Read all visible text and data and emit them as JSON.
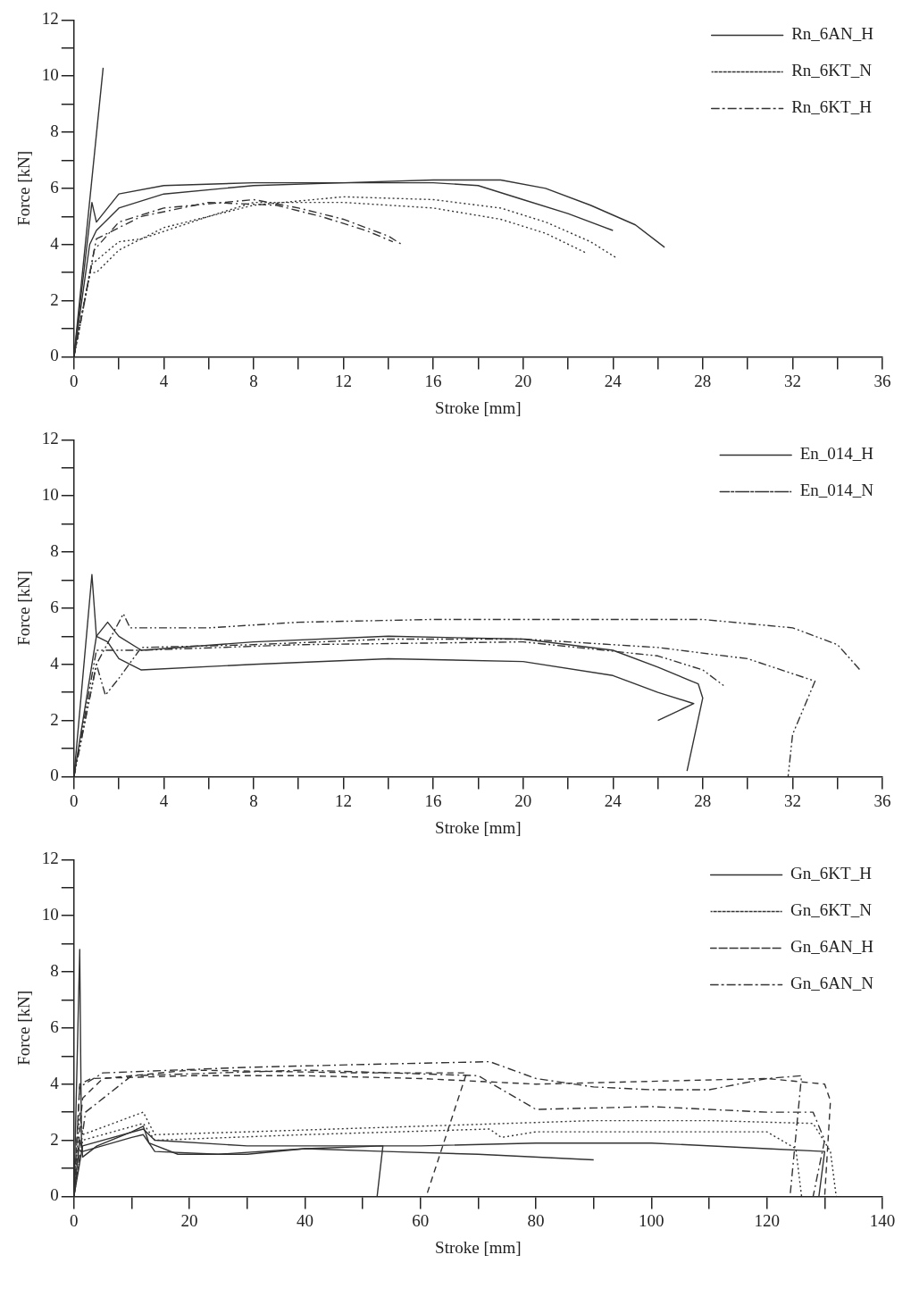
{
  "chart_data": [
    {
      "type": "line",
      "xlabel": "Stroke [mm]",
      "ylabel": "Force [kN]",
      "xlim": [
        0,
        36
      ],
      "ylim": [
        0,
        12
      ],
      "xticks": [
        0,
        {
          "value": 2,
          "label": null
        },
        4,
        {
          "value": 6,
          "label": null
        },
        8,
        {
          "value": 10,
          "label": null
        },
        12,
        {
          "value": 14,
          "label": null
        },
        16,
        {
          "value": 18,
          "label": null
        },
        20,
        {
          "value": 22,
          "label": null
        },
        24,
        {
          "value": 26,
          "label": null
        },
        28,
        {
          "value": 30,
          "label": null
        },
        32,
        {
          "value": 34,
          "label": null
        },
        36
      ],
      "yticks": [
        0,
        {
          "value": 1,
          "label": null
        },
        2,
        {
          "value": 3,
          "label": null
        },
        4,
        {
          "value": 5,
          "label": null
        },
        6,
        {
          "value": 7,
          "label": null
        },
        8,
        {
          "value": 9,
          "label": null
        },
        10,
        {
          "value": 11,
          "label": null
        },
        12
      ],
      "grid": false,
      "legend": "top right",
      "series": [
        {
          "name": "Rn_6AN_H",
          "color": "#333333",
          "line_style": "solid",
          "x": [
            0,
            0.8,
            1,
            2,
            4,
            8,
            12,
            16,
            19,
            21,
            23,
            25,
            26.3
          ],
          "values": [
            0,
            5.5,
            4.8,
            5.8,
            6.1,
            6.2,
            6.2,
            6.3,
            6.3,
            6.0,
            5.4,
            4.7,
            3.9
          ]
        },
        {
          "name": "Rn_6KT_N",
          "color": "#333333",
          "line_style": "dotted",
          "x": [
            0,
            0.7,
            1,
            2,
            4,
            8,
            12,
            16,
            19,
            21,
            23,
            24.2
          ],
          "values": [
            0,
            3,
            3,
            3.8,
            4.6,
            5.4,
            5.7,
            5.6,
            5.3,
            4.8,
            4.1,
            3.5
          ]
        },
        {
          "name": "Rn_6KT_H",
          "color": "#333333",
          "line_style": "dashdot",
          "x": [
            0,
            0.9,
            2,
            4,
            8,
            10,
            12,
            14,
            14.6
          ],
          "values": [
            0,
            3.8,
            4.8,
            5.3,
            5.6,
            5.3,
            4.9,
            4.3,
            4.0
          ]
        },
        {
          "color": "#333333",
          "line_style": "solid",
          "x": [
            0,
            0.7,
            1,
            2,
            4,
            8,
            12,
            16,
            18,
            20,
            22,
            24
          ],
          "values": [
            0,
            4,
            4.5,
            5.3,
            5.8,
            6.1,
            6.2,
            6.2,
            6.1,
            5.6,
            5.1,
            4.5
          ]
        },
        {
          "color": "#333333",
          "line_style": "solid",
          "x": [
            0,
            1.3
          ],
          "values": [
            0,
            10.3
          ]
        },
        {
          "color": "#333333",
          "line_style": "dotted",
          "x": [
            0,
            0.8,
            2,
            3,
            6,
            8,
            12,
            16,
            19,
            21,
            22.8
          ],
          "values": [
            0,
            3.3,
            4.1,
            4.2,
            5,
            5.5,
            5.5,
            5.3,
            4.9,
            4.4,
            3.7
          ]
        },
        {
          "color": "#333333",
          "line_style": "dashdot",
          "x": [
            0,
            1,
            3,
            6,
            9,
            11,
            13,
            14.2
          ],
          "values": [
            0,
            4.2,
            5.0,
            5.5,
            5.4,
            5.0,
            4.5,
            4.1
          ]
        }
      ]
    },
    {
      "type": "line",
      "xlabel": "Stroke [mm]",
      "ylabel": "Force [kN]",
      "xlim": [
        0,
        36
      ],
      "ylim": [
        0,
        12
      ],
      "xticks": [
        0,
        {
          "value": 2,
          "label": null
        },
        4,
        {
          "value": 6,
          "label": null
        },
        8,
        {
          "value": 10,
          "label": null
        },
        12,
        {
          "value": 14,
          "label": null
        },
        16,
        {
          "value": 18,
          "label": null
        },
        20,
        {
          "value": 22,
          "label": null
        },
        24,
        {
          "value": 26,
          "label": null
        },
        28,
        {
          "value": 30,
          "label": null
        },
        32,
        {
          "value": 34,
          "label": null
        },
        36
      ],
      "yticks": [
        0,
        {
          "value": 1,
          "label": null
        },
        2,
        {
          "value": 3,
          "label": null
        },
        4,
        {
          "value": 5,
          "label": null
        },
        6,
        {
          "value": 7,
          "label": null
        },
        8,
        {
          "value": 9,
          "label": null
        },
        10,
        {
          "value": 11,
          "label": null
        },
        12
      ],
      "grid": false,
      "legend": "top right",
      "series": [
        {
          "name": "En_014_H",
          "color": "#333333",
          "line_style": "solid",
          "x": [
            0,
            0.8,
            1,
            1.5,
            2,
            3,
            8,
            14,
            20,
            24,
            26,
            27.6,
            26
          ],
          "values": [
            0,
            7.2,
            5,
            4.8,
            4.2,
            3.8,
            4.0,
            4.2,
            4.1,
            3.6,
            3.0,
            2.6,
            2.0
          ]
        },
        {
          "name": "En_014_N",
          "color": "#333333",
          "line_style": "dashdotdot",
          "x": [
            0,
            1,
            2.2,
            2.5,
            6,
            10,
            16,
            22,
            28,
            32,
            34,
            35
          ],
          "values": [
            0,
            4,
            5.8,
            5.3,
            5.3,
            5.5,
            5.6,
            5.6,
            5.6,
            5.3,
            4.7,
            3.8
          ]
        },
        {
          "color": "#333333",
          "line_style": "solid",
          "x": [
            0,
            1,
            1.5,
            2,
            3,
            8,
            14,
            20,
            24,
            26,
            27.8,
            28,
            27.3
          ],
          "values": [
            0,
            5,
            5.5,
            5,
            4.5,
            4.8,
            5.0,
            4.9,
            4.5,
            3.9,
            3.3,
            2.8,
            0.2
          ]
        },
        {
          "color": "#333333",
          "line_style": "dashdotdot",
          "x": [
            0,
            1,
            1.4,
            2,
            3,
            8,
            14,
            20,
            26,
            30,
            33,
            32,
            31.8
          ],
          "values": [
            0,
            4,
            2.9,
            3.5,
            4.6,
            4.7,
            4.9,
            4.9,
            4.6,
            4.2,
            3.4,
            1.5,
            0
          ]
        },
        {
          "color": "#333333",
          "line_style": "dashdotdot",
          "x": [
            0,
            1,
            3,
            10,
            20,
            26,
            28,
            29
          ],
          "values": [
            0,
            4.5,
            4.5,
            4.7,
            4.8,
            4.3,
            3.8,
            3.2
          ]
        }
      ]
    },
    {
      "type": "line",
      "xlabel": "Stroke [mm]",
      "ylabel": "Force [kN]",
      "xlim": [
        0,
        140
      ],
      "ylim": [
        0,
        12
      ],
      "xticks": [
        0,
        {
          "value": 10,
          "label": null
        },
        20,
        {
          "value": 30,
          "label": null
        },
        40,
        {
          "value": 50,
          "label": null
        },
        60,
        {
          "value": 70,
          "label": null
        },
        80,
        {
          "value": 90,
          "label": null
        },
        100,
        {
          "value": 110,
          "label": null
        },
        120,
        {
          "value": 130,
          "label": null
        },
        140
      ],
      "yticks": [
        0,
        {
          "value": 1,
          "label": null
        },
        2,
        {
          "value": 3,
          "label": null
        },
        4,
        {
          "value": 5,
          "label": null
        },
        6,
        {
          "value": 7,
          "label": null
        },
        8,
        {
          "value": 9,
          "label": null
        },
        10,
        {
          "value": 11,
          "label": null
        },
        12
      ],
      "grid": false,
      "legend": "top right",
      "series": [
        {
          "name": "Gn_6KT_H",
          "color": "#333333",
          "line_style": "solid",
          "x": [
            0,
            1,
            1.3,
            1.5,
            4,
            10,
            12,
            13,
            18,
            30,
            40,
            53.5,
            52.5
          ],
          "values": [
            0,
            8.8,
            2,
            1.4,
            1.8,
            2.3,
            2.5,
            1.9,
            1.5,
            1.5,
            1.7,
            1.8,
            0
          ]
        },
        {
          "name": "Gn_6KT_N",
          "color": "#333333",
          "line_style": "dotted",
          "x": [
            0,
            1,
            1.5,
            12,
            14,
            30,
            60,
            90,
            110,
            128,
            131,
            132
          ],
          "values": [
            0,
            3,
            2.2,
            3,
            2.2,
            2.3,
            2.5,
            2.7,
            2.7,
            2.6,
            1.6,
            0
          ]
        },
        {
          "name": "Gn_6AN_H",
          "color": "#333333",
          "line_style": "dashed",
          "x": [
            0,
            1,
            3,
            20,
            40,
            60,
            70,
            80,
            100,
            120,
            130,
            131,
            130
          ],
          "values": [
            0,
            4,
            4.2,
            4.3,
            4.3,
            4.2,
            4.1,
            4.0,
            4.1,
            4.2,
            4.0,
            3.4,
            0
          ]
        },
        {
          "name": "Gn_6AN_N",
          "color": "#333333",
          "line_style": "dashdot",
          "x": [
            0,
            1,
            5,
            30,
            50,
            72,
            80,
            90,
            100,
            110,
            120,
            126,
            124
          ],
          "values": [
            0,
            3.9,
            4.4,
            4.6,
            4.7,
            4.8,
            4.2,
            3.9,
            3.8,
            3.8,
            4.2,
            4.3,
            0
          ]
        },
        {
          "color": "#333333",
          "line_style": "solid",
          "x": [
            0,
            1,
            1.5,
            10,
            12,
            14,
            25,
            40,
            54,
            70,
            90
          ],
          "values": [
            0,
            2,
            1.6,
            2.1,
            2.2,
            1.6,
            1.5,
            1.7,
            1.6,
            1.5,
            1.3
          ]
        },
        {
          "color": "#333333",
          "line_style": "solid",
          "x": [
            0,
            1.5,
            12,
            14,
            30,
            60,
            80,
            100,
            120,
            130,
            129
          ],
          "values": [
            0,
            1.8,
            2.4,
            2.0,
            1.8,
            1.8,
            1.9,
            1.9,
            1.7,
            1.6,
            0
          ]
        },
        {
          "color": "#333333",
          "line_style": "dotted",
          "x": [
            0,
            1.5,
            12,
            14,
            40,
            72,
            74,
            80,
            120,
            125,
            126
          ],
          "values": [
            0,
            2,
            2.6,
            2.0,
            2.2,
            2.4,
            2.1,
            2.3,
            2.3,
            1.7,
            0
          ]
        },
        {
          "color": "#333333",
          "line_style": "dashed",
          "x": [
            0,
            1.5,
            5,
            20,
            50,
            68,
            61
          ],
          "values": [
            0,
            3.5,
            4.2,
            4.5,
            4.4,
            4.4,
            0
          ]
        },
        {
          "color": "#333333",
          "line_style": "dashdot",
          "x": [
            0,
            2,
            10,
            40,
            70,
            80,
            100,
            120,
            128,
            130,
            128
          ],
          "values": [
            0,
            3,
            4.3,
            4.5,
            4.3,
            3.1,
            3.2,
            3.0,
            3.0,
            2,
            0
          ]
        }
      ]
    }
  ]
}
